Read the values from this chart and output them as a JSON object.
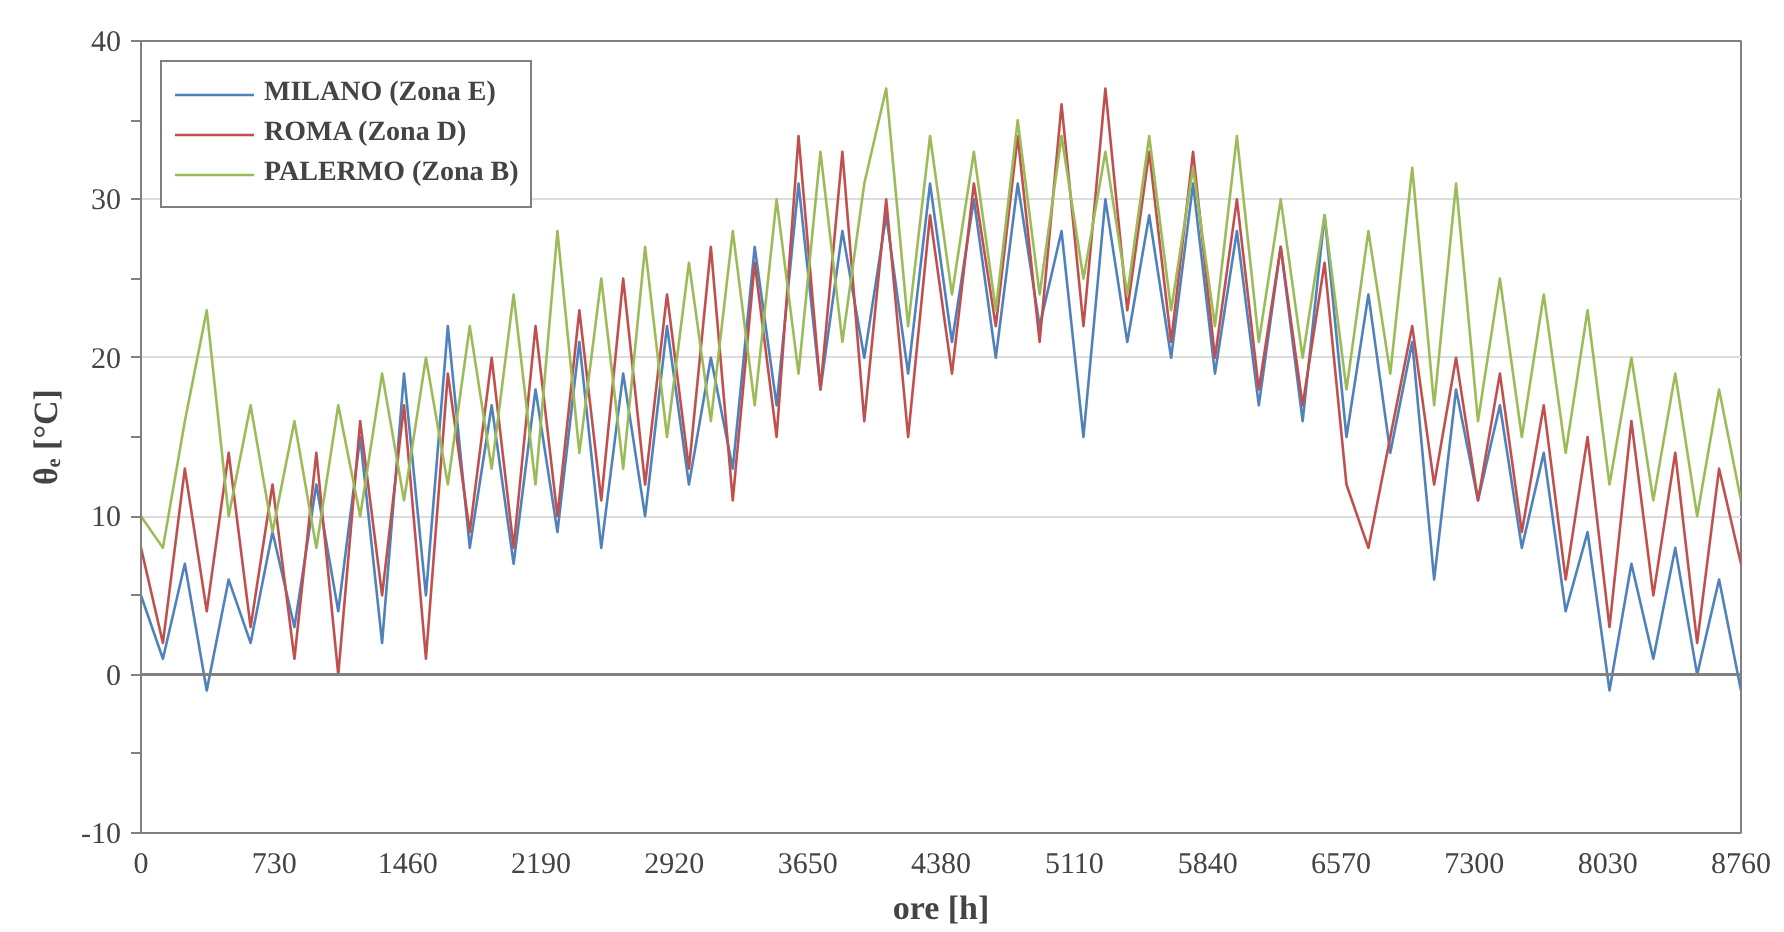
{
  "chart_data": {
    "type": "line",
    "xlabel": "ore [h]",
    "ylabel": "θₑ [°C]",
    "x": [
      0,
      120,
      240,
      360,
      480,
      600,
      720,
      840,
      960,
      1080,
      1200,
      1320,
      1440,
      1560,
      1680,
      1800,
      1920,
      2040,
      2160,
      2280,
      2400,
      2520,
      2640,
      2760,
      2880,
      3000,
      3120,
      3240,
      3360,
      3480,
      3600,
      3720,
      3840,
      3960,
      4080,
      4200,
      4320,
      4440,
      4560,
      4680,
      4800,
      4920,
      5040,
      5160,
      5280,
      5400,
      5520,
      5640,
      5760,
      5880,
      6000,
      6120,
      6240,
      6360,
      6480,
      6600,
      6720,
      6840,
      6960,
      7080,
      7200,
      7320,
      7440,
      7560,
      7680,
      7800,
      7920,
      8040,
      8160,
      8280,
      8400,
      8520,
      8640,
      8760
    ],
    "series": [
      {
        "name": "MILANO (Zona E)",
        "color": "#4f81bd",
        "values": [
          5,
          1,
          7,
          -1,
          6,
          2,
          9,
          3,
          12,
          4,
          15,
          2,
          19,
          5,
          22,
          8,
          17,
          7,
          18,
          9,
          21,
          8,
          19,
          10,
          22,
          12,
          20,
          13,
          27,
          17,
          31,
          18,
          28,
          20,
          29,
          19,
          31,
          21,
          30,
          20,
          31,
          22,
          28,
          15,
          30,
          21,
          29,
          20,
          31,
          19,
          28,
          17,
          27,
          16,
          29,
          15,
          24,
          14,
          21,
          6,
          18,
          11,
          17,
          8,
          14,
          4,
          9,
          -1,
          7,
          1,
          8,
          0,
          6,
          -1
        ]
      },
      {
        "name": "ROMA (Zona D)",
        "color": "#c0504d",
        "values": [
          8,
          2,
          13,
          4,
          14,
          3,
          12,
          1,
          14,
          0,
          16,
          5,
          17,
          1,
          19,
          9,
          20,
          8,
          22,
          10,
          23,
          11,
          25,
          12,
          24,
          13,
          27,
          11,
          26,
          15,
          34,
          18,
          33,
          16,
          30,
          15,
          29,
          19,
          31,
          22,
          34,
          21,
          36,
          22,
          37,
          23,
          33,
          21,
          33,
          20,
          30,
          18,
          27,
          17,
          26,
          12,
          8,
          15,
          22,
          12,
          20,
          11,
          19,
          9,
          17,
          6,
          15,
          3,
          16,
          5,
          14,
          2,
          13,
          7
        ]
      },
      {
        "name": "PALERMO (Zona B)",
        "color": "#9bbb59",
        "values": [
          10,
          8,
          16,
          23,
          10,
          17,
          9,
          16,
          8,
          17,
          10,
          19,
          11,
          20,
          12,
          22,
          13,
          24,
          12,
          28,
          14,
          25,
          13,
          27,
          15,
          26,
          16,
          28,
          17,
          30,
          19,
          33,
          21,
          31,
          37,
          22,
          34,
          24,
          33,
          23,
          35,
          24,
          34,
          25,
          33,
          24,
          34,
          23,
          32,
          22,
          34,
          21,
          30,
          20,
          29,
          18,
          28,
          19,
          32,
          17,
          31,
          16,
          25,
          15,
          24,
          14,
          23,
          12,
          20,
          11,
          19,
          10,
          18,
          11
        ]
      }
    ],
    "xlim": [
      0,
      8760
    ],
    "xticks": [
      0,
      730,
      1460,
      2190,
      2920,
      3650,
      4380,
      5110,
      5840,
      6570,
      7300,
      8030,
      8760
    ],
    "ylim": [
      -10,
      40
    ],
    "yticks": [
      -10,
      {
        "value": -5,
        "label": null
      },
      0,
      {
        "value": 5,
        "label": null
      },
      10,
      {
        "value": 15,
        "label": null
      },
      20,
      {
        "value": 25,
        "label": null
      },
      30,
      {
        "value": 35,
        "label": null
      },
      40
    ],
    "ref_lines": [
      {
        "axis": "y",
        "value": 0,
        "color": "#808080"
      }
    ],
    "grid": "y",
    "legend": "top left",
    "line_style": "solid",
    "marker": "none"
  }
}
